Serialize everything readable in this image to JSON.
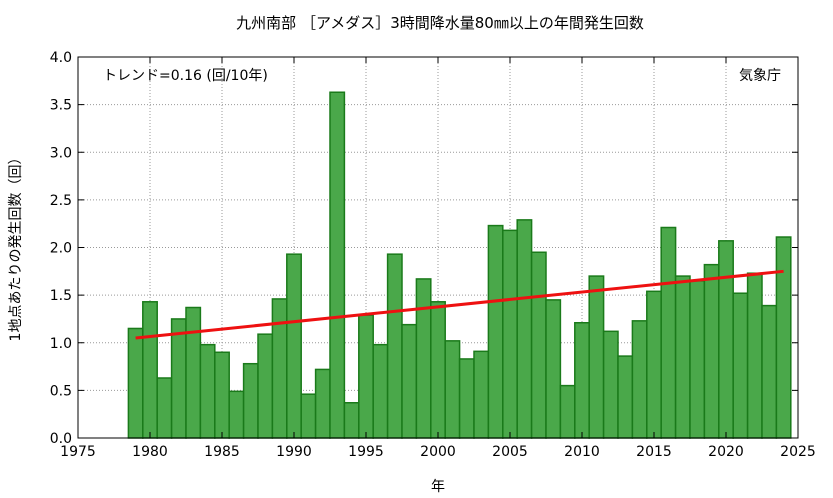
{
  "chart_data": {
    "type": "bar",
    "title": "九州南部 ［アメダス］3時間降水量80㎜以上の年間発生回数",
    "xlabel": "年",
    "ylabel": "1地点あたりの発生回数（回）",
    "xlim": [
      1975,
      2025
    ],
    "ylim": [
      0,
      4.0
    ],
    "x_ticks": [
      "1975",
      "1980",
      "1985",
      "1990",
      "1995",
      "2000",
      "2005",
      "2010",
      "2015",
      "2020",
      "2025"
    ],
    "y_ticks": [
      "0.0",
      "0.5",
      "1.0",
      "1.5",
      "2.0",
      "2.5",
      "3.0",
      "3.5",
      "4.0"
    ],
    "grid": true,
    "annotation_trend": "トレンド=0.16 (回/10年)",
    "annotation_source": "気象庁",
    "bar_color": "#4aa84a",
    "bar_edge_color": "#1a7a1a",
    "trend_color": "#ee1111",
    "trend": {
      "x": [
        1979,
        2024
      ],
      "y": [
        1.05,
        1.75
      ]
    },
    "x": [
      1979,
      1980,
      1981,
      1982,
      1983,
      1984,
      1985,
      1986,
      1987,
      1988,
      1989,
      1990,
      1991,
      1992,
      1993,
      1994,
      1995,
      1996,
      1997,
      1998,
      1999,
      2000,
      2001,
      2002,
      2003,
      2004,
      2005,
      2006,
      2007,
      2008,
      2009,
      2010,
      2011,
      2012,
      2013,
      2014,
      2015,
      2016,
      2017,
      2018,
      2019,
      2020,
      2021,
      2022,
      2023,
      2024
    ],
    "values": [
      1.15,
      1.43,
      0.63,
      1.25,
      1.37,
      0.98,
      0.9,
      0.49,
      0.78,
      1.09,
      1.46,
      1.93,
      0.46,
      0.72,
      3.63,
      0.37,
      1.29,
      0.98,
      1.93,
      1.19,
      1.67,
      1.43,
      1.02,
      0.83,
      0.91,
      2.23,
      2.18,
      2.29,
      1.95,
      1.45,
      0.55,
      1.21,
      1.7,
      1.12,
      0.86,
      1.23,
      1.54,
      2.21,
      1.7,
      1.65,
      1.82,
      2.07,
      1.52,
      1.73,
      1.39,
      2.11
    ]
  }
}
